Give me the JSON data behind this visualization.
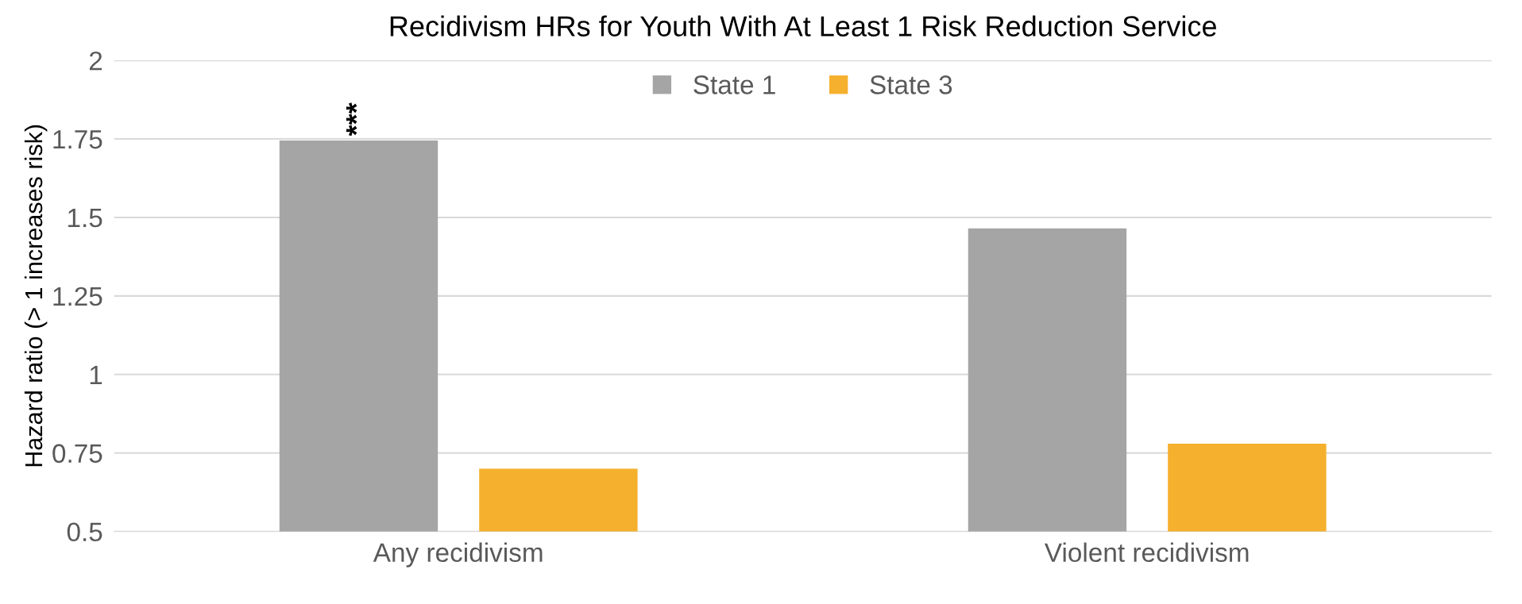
{
  "chart_data": {
    "type": "bar",
    "title": "Recidivism HRs for Youth With At Least 1 Risk Reduction Service",
    "ylabel": "Hazard ratio (> 1 increases risk)",
    "categories": [
      "Any recidivism",
      "Violent recidivism"
    ],
    "series": [
      {
        "name": "State 1",
        "color": "#a5a5a5",
        "values": [
          1.745,
          1.465
        ]
      },
      {
        "name": "State 3",
        "color": "#f5b02e",
        "values": [
          0.7,
          0.78
        ]
      }
    ],
    "ylim": [
      0.5,
      2
    ],
    "yticks": [
      0.5,
      0.75,
      1,
      1.25,
      1.5,
      1.75,
      2
    ],
    "grid": "y",
    "legend": "top",
    "annotations": [
      "***"
    ]
  }
}
